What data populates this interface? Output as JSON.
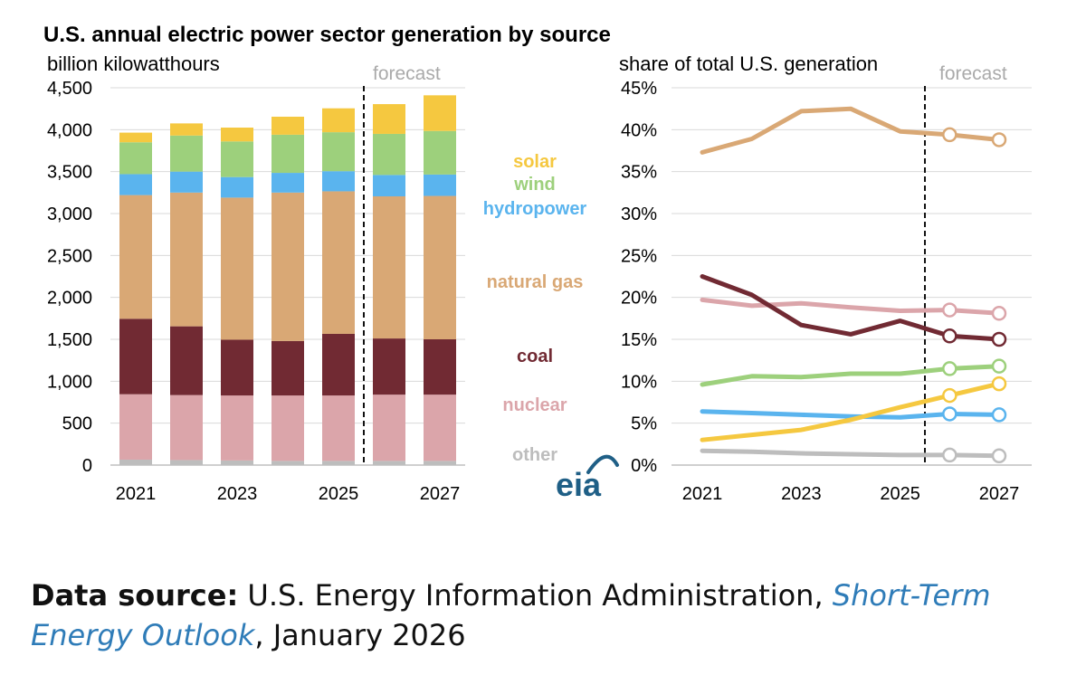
{
  "title": "U.S. annual electric power sector generation by source",
  "colors": {
    "solar": "#f5c840",
    "wind": "#9dd07c",
    "hydropower": "#5ab4ee",
    "natural gas": "#d9a875",
    "coal": "#712a33",
    "nuclear": "#dba5aa",
    "other": "#bdbdbd",
    "forecast_label": "#aaaaaa",
    "logo": "#1f5f86"
  },
  "legend": [
    {
      "key": "solar",
      "label": "solar"
    },
    {
      "key": "wind",
      "label": "wind"
    },
    {
      "key": "hydropower",
      "label": "hydropower"
    },
    {
      "key": "natural gas",
      "label": "natural gas"
    },
    {
      "key": "coal",
      "label": "coal"
    },
    {
      "key": "nuclear",
      "label": "nuclear"
    },
    {
      "key": "other",
      "label": "other"
    }
  ],
  "logo": {
    "text": "eia"
  },
  "source": {
    "label": "Data source:",
    "publisher": "U.S. Energy Information Administration,",
    "publication": "Short-Term Energy Outlook",
    "date": ", January 2026"
  },
  "chart_data": [
    {
      "type": "bar",
      "stacked": true,
      "ylabel": "billion kilowatthours",
      "forecast_label": "forecast",
      "forecast_starts_after": "2025",
      "ylim": [
        0,
        4500
      ],
      "yticks": [
        0,
        500,
        1000,
        1500,
        2000,
        2500,
        3000,
        3500,
        4000,
        4500
      ],
      "ytick_labels": [
        "0",
        "500",
        "1,000",
        "1,500",
        "2,000",
        "2,500",
        "3,000",
        "3,500",
        "4,000",
        "4,500"
      ],
      "categories": [
        "2021",
        "2022",
        "2023",
        "2024",
        "2025",
        "2026",
        "2027"
      ],
      "xtick_labels": [
        "2021",
        "2023",
        "2025",
        "2027"
      ],
      "series": [
        {
          "name": "other",
          "values": [
            65,
            60,
            55,
            50,
            50,
            50,
            50
          ]
        },
        {
          "name": "nuclear",
          "values": [
            780,
            775,
            775,
            780,
            780,
            790,
            790
          ]
        },
        {
          "name": "coal",
          "values": [
            900,
            820,
            665,
            650,
            735,
            670,
            660
          ]
        },
        {
          "name": "natural gas",
          "values": [
            1475,
            1595,
            1695,
            1770,
            1700,
            1695,
            1710
          ]
        },
        {
          "name": "hydropower",
          "values": [
            250,
            250,
            245,
            235,
            240,
            255,
            255
          ]
        },
        {
          "name": "wind",
          "values": [
            380,
            430,
            425,
            455,
            465,
            490,
            520
          ]
        },
        {
          "name": "solar",
          "values": [
            115,
            145,
            165,
            215,
            285,
            355,
            425
          ]
        }
      ]
    },
    {
      "type": "line",
      "ylabel": "share of total U.S. generation",
      "forecast_label": "forecast",
      "forecast_starts_after": "2025",
      "ylim": [
        0,
        45
      ],
      "yticks": [
        0,
        5,
        10,
        15,
        20,
        25,
        30,
        35,
        40,
        45
      ],
      "ytick_labels": [
        "0%",
        "5%",
        "10%",
        "15%",
        "20%",
        "25%",
        "30%",
        "35%",
        "40%",
        "45%"
      ],
      "x": [
        "2021",
        "2022",
        "2023",
        "2024",
        "2025",
        "2026",
        "2027"
      ],
      "xtick_labels": [
        "2021",
        "2023",
        "2025",
        "2027"
      ],
      "forecast_markers": [
        "2026",
        "2027"
      ],
      "series": [
        {
          "name": "natural gas",
          "values": [
            37.3,
            38.9,
            42.2,
            42.5,
            39.8,
            39.4,
            38.8
          ]
        },
        {
          "name": "nuclear",
          "values": [
            19.7,
            19.0,
            19.3,
            18.8,
            18.4,
            18.5,
            18.1
          ]
        },
        {
          "name": "coal",
          "values": [
            22.5,
            20.3,
            16.7,
            15.6,
            17.2,
            15.4,
            15.0
          ]
        },
        {
          "name": "wind",
          "values": [
            9.6,
            10.6,
            10.5,
            10.9,
            10.9,
            11.5,
            11.8
          ]
        },
        {
          "name": "hydropower",
          "values": [
            6.4,
            6.2,
            6.0,
            5.8,
            5.7,
            6.1,
            6.0
          ]
        },
        {
          "name": "solar",
          "values": [
            3.0,
            3.6,
            4.2,
            5.4,
            6.9,
            8.3,
            9.7
          ]
        },
        {
          "name": "other",
          "values": [
            1.7,
            1.6,
            1.4,
            1.3,
            1.2,
            1.2,
            1.1
          ]
        }
      ]
    }
  ]
}
